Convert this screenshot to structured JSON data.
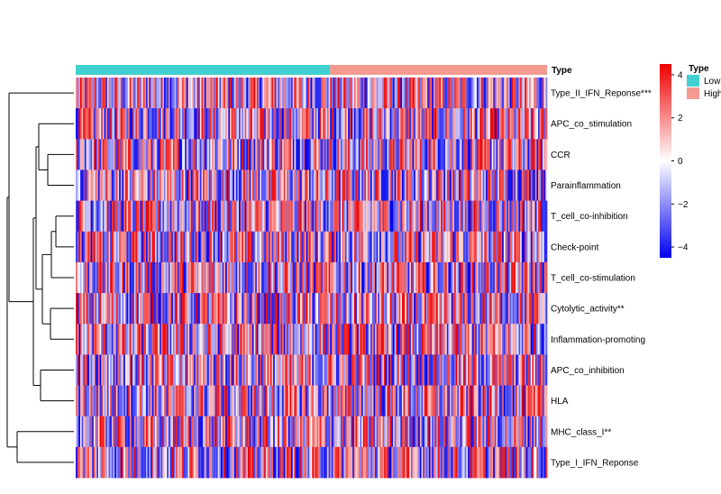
{
  "chart_data": {
    "type": "heatmap",
    "column_annotation": {
      "title": "Type",
      "groups": [
        {
          "name": "Low",
          "color": "#3fd0cf",
          "columns": 170
        },
        {
          "name": "High",
          "color": "#f49a90",
          "columns": 145
        }
      ]
    },
    "rows": [
      {
        "label": "Type_II_IFN_Reponse",
        "stars": "***"
      },
      {
        "label": "APC_co_stimulation",
        "stars": ""
      },
      {
        "label": "CCR",
        "stars": ""
      },
      {
        "label": "Parainflammation",
        "stars": ""
      },
      {
        "label": "T_cell_co-inhibition",
        "stars": ""
      },
      {
        "label": "Check-point",
        "stars": ""
      },
      {
        "label": "T_cell_co-stimulation",
        "stars": ""
      },
      {
        "label": "Cytolytic_activity",
        "stars": "**"
      },
      {
        "label": "Inflammation-promoting",
        "stars": ""
      },
      {
        "label": "APC_co_inhibition",
        "stars": ""
      },
      {
        "label": "HLA",
        "stars": ""
      },
      {
        "label": "MHC_class_I",
        "stars": "**"
      },
      {
        "label": "Type_I_IFN_Reponse",
        "stars": ""
      }
    ],
    "color_scale": {
      "min": -4.5,
      "max": 4.5,
      "low_color": "#0000ee",
      "mid_color": "#ffffff",
      "high_color": "#ee0000",
      "ticks": [
        4,
        2,
        0,
        -2,
        -4
      ]
    },
    "legend": {
      "position": "right"
    }
  }
}
